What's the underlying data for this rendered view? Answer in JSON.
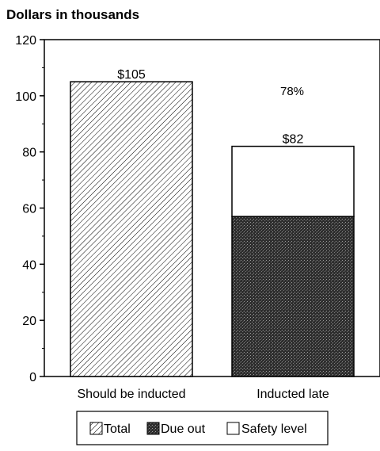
{
  "chart_data": {
    "type": "bar",
    "title": "Dollars in thousands",
    "categories": [
      "Should be inducted",
      "Inducted late"
    ],
    "series": [
      {
        "name": "Total",
        "values": [
          105,
          null
        ]
      },
      {
        "name": "Due out",
        "values": [
          null,
          57
        ]
      },
      {
        "name": "Safety level",
        "values": [
          null,
          25
        ]
      }
    ],
    "bar_labels": [
      "$105",
      "$82"
    ],
    "annotations": [
      {
        "text": "78%"
      }
    ],
    "yticks": [
      "0",
      "20",
      "40",
      "60",
      "80",
      "100",
      "120"
    ],
    "ylim": [
      0,
      120
    ],
    "grid": false,
    "legend_position": "bottom",
    "colors": {
      "total": "#ffffff",
      "due_out": "#3a3a3a",
      "safety_level": "#ffffff",
      "axis": "#000000"
    }
  }
}
